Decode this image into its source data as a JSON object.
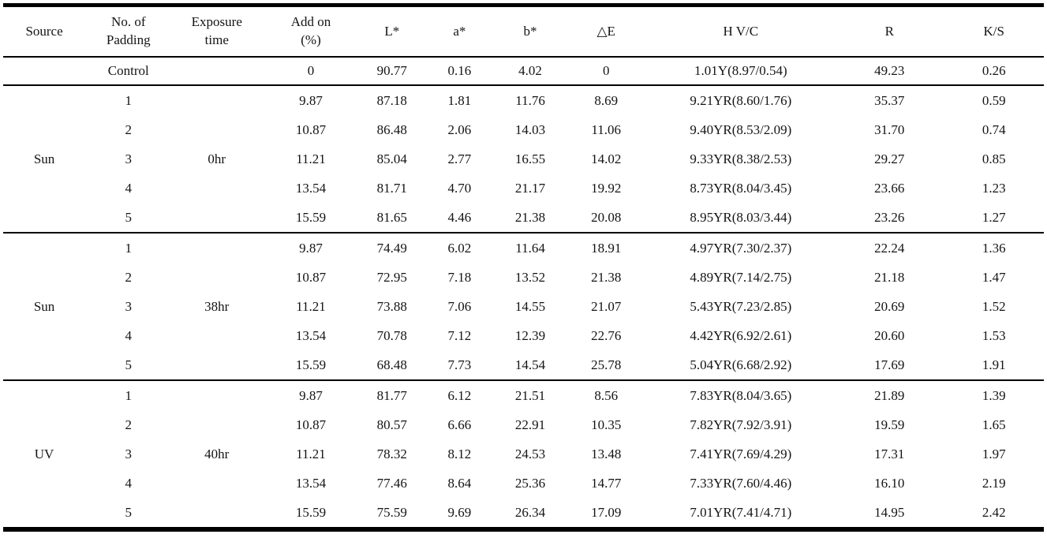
{
  "page": {
    "background_color": "#ffffff",
    "text_color": "#141414",
    "rule_color": "#000000"
  },
  "table": {
    "headers": [
      {
        "id": "source",
        "lines": [
          "Source"
        ]
      },
      {
        "id": "padding",
        "lines": [
          "No. of",
          "Padding"
        ]
      },
      {
        "id": "exposure",
        "lines": [
          "Exposure",
          "time"
        ]
      },
      {
        "id": "addon",
        "lines": [
          "Add on",
          "(%)"
        ]
      },
      {
        "id": "lstar",
        "lines": [
          "L*"
        ]
      },
      {
        "id": "astar",
        "lines": [
          "a*"
        ]
      },
      {
        "id": "bstar",
        "lines": [
          "b*"
        ]
      },
      {
        "id": "deltae",
        "lines": [
          "△E"
        ]
      },
      {
        "id": "hvc",
        "lines": [
          "H V/C"
        ]
      },
      {
        "id": "r",
        "lines": [
          "R"
        ]
      },
      {
        "id": "ks",
        "lines": [
          "K/S"
        ]
      }
    ],
    "control_row": {
      "source": "",
      "padding": "Control",
      "exposure": "",
      "values": [
        "0",
        "90.77",
        "0.16",
        "4.02",
        "0",
        "1.01Y(8.97/0.54)",
        "49.23",
        "0.26"
      ]
    },
    "groups": [
      {
        "source": "Sun",
        "exposure": "0hr",
        "rows": [
          {
            "padding": "1",
            "values": [
              "9.87",
              "87.18",
              "1.81",
              "11.76",
              "8.69",
              "9.21YR(8.60/1.76)",
              "35.37",
              "0.59"
            ]
          },
          {
            "padding": "2",
            "values": [
              "10.87",
              "86.48",
              "2.06",
              "14.03",
              "11.06",
              "9.40YR(8.53/2.09)",
              "31.70",
              "0.74"
            ]
          },
          {
            "padding": "3",
            "values": [
              "11.21",
              "85.04",
              "2.77",
              "16.55",
              "14.02",
              "9.33YR(8.38/2.53)",
              "29.27",
              "0.85"
            ]
          },
          {
            "padding": "4",
            "values": [
              "13.54",
              "81.71",
              "4.70",
              "21.17",
              "19.92",
              "8.73YR(8.04/3.45)",
              "23.66",
              "1.23"
            ]
          },
          {
            "padding": "5",
            "values": [
              "15.59",
              "81.65",
              "4.46",
              "21.38",
              "20.08",
              "8.95YR(8.03/3.44)",
              "23.26",
              "1.27"
            ]
          }
        ]
      },
      {
        "source": "Sun",
        "exposure": "38hr",
        "rows": [
          {
            "padding": "1",
            "values": [
              "9.87",
              "74.49",
              "6.02",
              "11.64",
              "18.91",
              "4.97YR(7.30/2.37)",
              "22.24",
              "1.36"
            ]
          },
          {
            "padding": "2",
            "values": [
              "10.87",
              "72.95",
              "7.18",
              "13.52",
              "21.38",
              "4.89YR(7.14/2.75)",
              "21.18",
              "1.47"
            ]
          },
          {
            "padding": "3",
            "values": [
              "11.21",
              "73.88",
              "7.06",
              "14.55",
              "21.07",
              "5.43YR(7.23/2.85)",
              "20.69",
              "1.52"
            ]
          },
          {
            "padding": "4",
            "values": [
              "13.54",
              "70.78",
              "7.12",
              "12.39",
              "22.76",
              "4.42YR(6.92/2.61)",
              "20.60",
              "1.53"
            ]
          },
          {
            "padding": "5",
            "values": [
              "15.59",
              "68.48",
              "7.73",
              "14.54",
              "25.78",
              "5.04YR(6.68/2.92)",
              "17.69",
              "1.91"
            ]
          }
        ]
      },
      {
        "source": "UV",
        "exposure": "40hr",
        "rows": [
          {
            "padding": "1",
            "values": [
              "9.87",
              "81.77",
              "6.12",
              "21.51",
              "8.56",
              "7.83YR(8.04/3.65)",
              "21.89",
              "1.39"
            ]
          },
          {
            "padding": "2",
            "values": [
              "10.87",
              "80.57",
              "6.66",
              "22.91",
              "10.35",
              "7.82YR(7.92/3.91)",
              "19.59",
              "1.65"
            ]
          },
          {
            "padding": "3",
            "values": [
              "11.21",
              "78.32",
              "8.12",
              "24.53",
              "13.48",
              "7.41YR(7.69/4.29)",
              "17.31",
              "1.97"
            ]
          },
          {
            "padding": "4",
            "values": [
              "13.54",
              "77.46",
              "8.64",
              "25.36",
              "14.77",
              "7.33YR(7.60/4.46)",
              "16.10",
              "2.19"
            ]
          },
          {
            "padding": "5",
            "values": [
              "15.59",
              "75.59",
              "9.69",
              "26.34",
              "17.09",
              "7.01YR(7.41/4.71)",
              "14.95",
              "2.42"
            ]
          }
        ]
      }
    ]
  }
}
